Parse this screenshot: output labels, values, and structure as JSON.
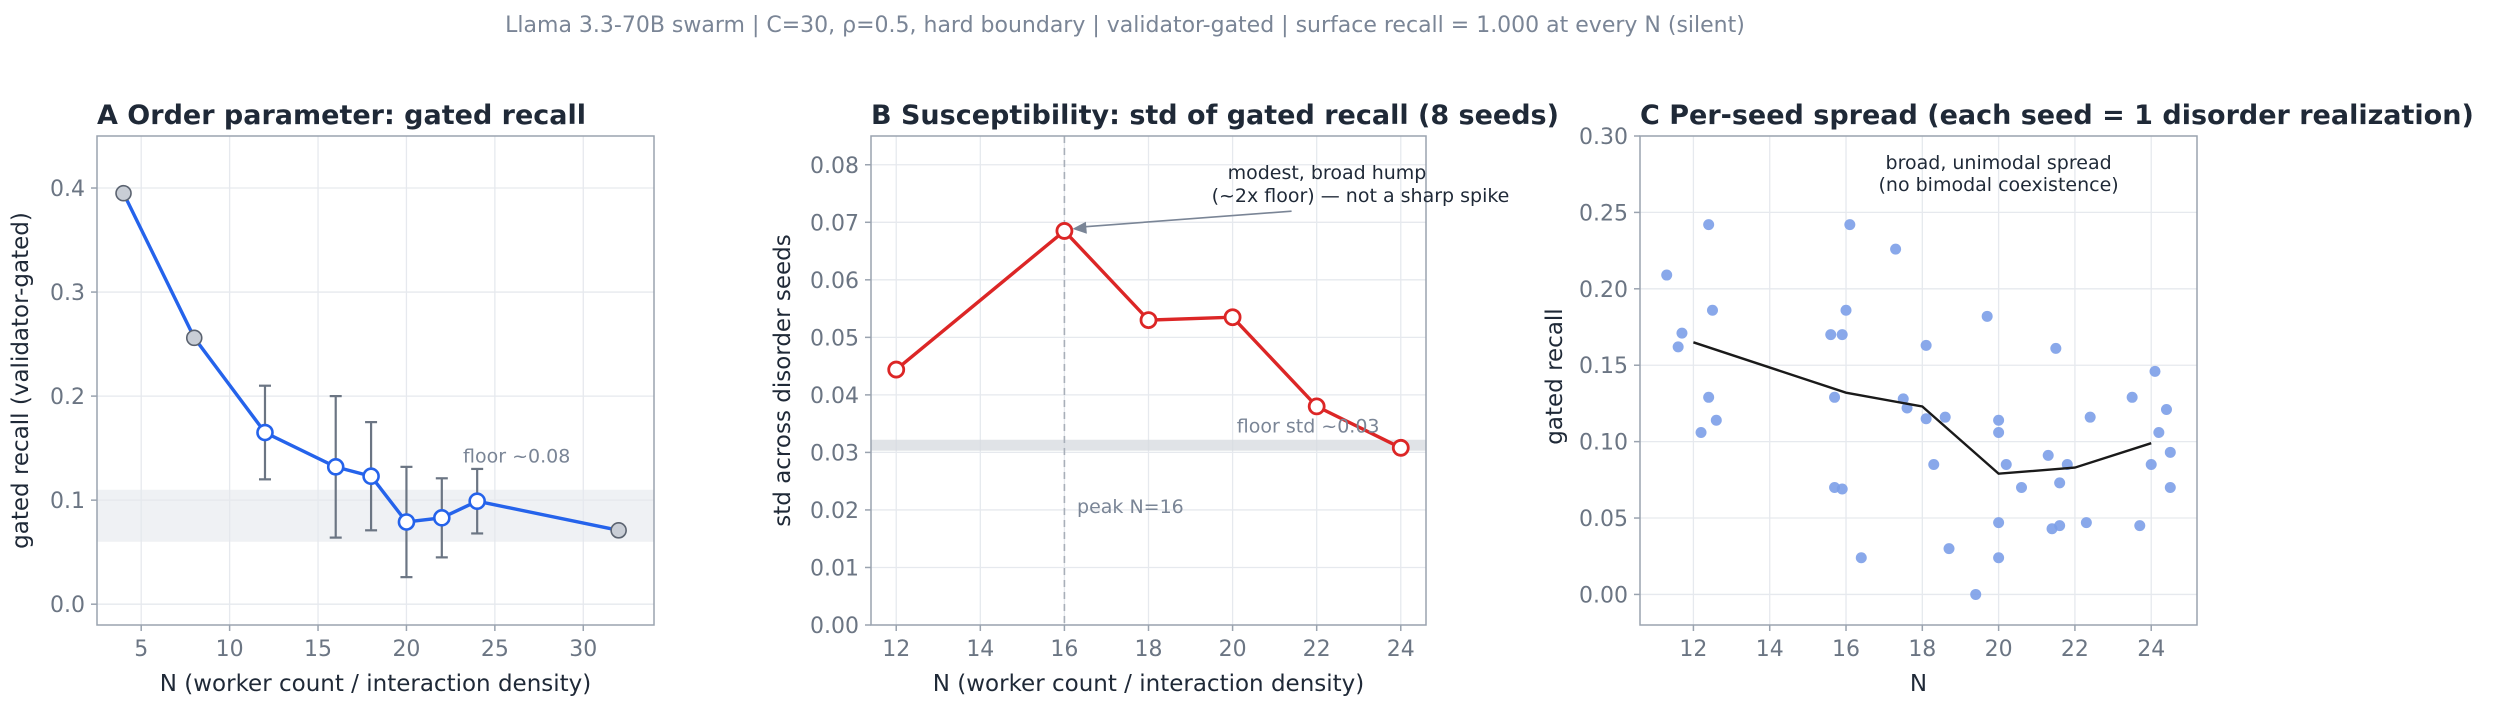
{
  "suptitle": "Llama 3.3-70B swarm  |  C=30, ρ=0.5, hard boundary  |  validator-gated  |  surface recall = 1.000 at every N (silent)",
  "colors": {
    "blue": "#2563eb",
    "red": "#dc2626",
    "scatter": "#7c9ee8",
    "band": "#e5e8ec",
    "gray_marker": "#c9ced6",
    "errorbar": "#6b7583",
    "median": "#1a1a1a"
  },
  "chart_data": [
    {
      "type": "line",
      "title": "A  Order parameter: gated recall",
      "xlabel": "N  (worker count / interaction density)",
      "ylabel": "gated recall (validator-gated)",
      "xlim": [
        2.5,
        34
      ],
      "ylim": [
        -0.02,
        0.45
      ],
      "xticks": [
        5,
        10,
        15,
        20,
        25,
        30
      ],
      "yticks": [
        0.0,
        0.1,
        0.2,
        0.3,
        0.4
      ],
      "yticklabels": [
        "0.0",
        "0.1",
        "0.2",
        "0.3",
        "0.4"
      ],
      "grid": true,
      "floor_band": [
        0.06,
        0.11
      ],
      "floor_label": "floor ~0.08",
      "floor_label_pos": [
        23.2,
        0.136
      ],
      "x": [
        4,
        8,
        12,
        16,
        18,
        20,
        22,
        24,
        32
      ],
      "y": [
        0.395,
        0.256,
        0.165,
        0.132,
        0.123,
        0.079,
        0.083,
        0.099,
        0.071
      ],
      "err": [
        0,
        0,
        0.045,
        0.068,
        0.052,
        0.053,
        0.038,
        0.031,
        0
      ],
      "gray_points": [
        4,
        8,
        32
      ]
    },
    {
      "type": "line",
      "title": "B  Susceptibility: std of gated recall (8 seeds)",
      "xlabel": "N  (worker count / interaction density)",
      "ylabel": "std across disorder seeds",
      "xlim": [
        11.4,
        24.6
      ],
      "ylim": [
        0,
        0.085
      ],
      "xticks": [
        12,
        14,
        16,
        18,
        20,
        22,
        24
      ],
      "yticks": [
        0.0,
        0.01,
        0.02,
        0.03,
        0.04,
        0.05,
        0.06,
        0.07,
        0.08
      ],
      "yticklabels": [
        "0.00",
        "0.01",
        "0.02",
        "0.03",
        "0.04",
        "0.05",
        "0.06",
        "0.07",
        "0.08"
      ],
      "grid": true,
      "floor_band": [
        0.0303,
        0.0322
      ],
      "floor_label": "floor std ~0.03",
      "floor_label_pos": [
        20.1,
        0.0335
      ],
      "peak_x": 16,
      "peak_label": "peak N=16",
      "peak_label_pos": [
        16.3,
        0.0195
      ],
      "annotation_lines": [
        "modest, broad hump",
        "(~2x floor) — not a sharp spike"
      ],
      "annotation_pos": [
        19.5,
        0.0775
      ],
      "x": [
        12,
        16,
        18,
        20,
        22,
        24
      ],
      "y": [
        0.0444,
        0.0685,
        0.053,
        0.0535,
        0.038,
        0.0308
      ]
    },
    {
      "type": "scatter",
      "title": "C  Per-seed spread (each seed = 1 disorder realization)",
      "xlabel": "N",
      "ylabel": "gated recall",
      "xlim": [
        10.6,
        25.2
      ],
      "ylim": [
        -0.02,
        0.3
      ],
      "xticks": [
        12,
        14,
        16,
        18,
        20,
        22,
        24
      ],
      "yticks": [
        0.0,
        0.05,
        0.1,
        0.15,
        0.2,
        0.25,
        0.3
      ],
      "yticklabels": [
        "0.00",
        "0.05",
        "0.10",
        "0.15",
        "0.20",
        "0.25",
        "0.30"
      ],
      "grid": true,
      "annotation_lines": [
        "broad, unimodal spread",
        "(no bimodal coexistence)"
      ],
      "annotation_pos": [
        20.0,
        0.291
      ],
      "points": [
        [
          11.3,
          0.209
        ],
        [
          11.6,
          0.162
        ],
        [
          11.7,
          0.171
        ],
        [
          12.2,
          0.106
        ],
        [
          12.4,
          0.129
        ],
        [
          12.4,
          0.242
        ],
        [
          12.5,
          0.186
        ],
        [
          12.6,
          0.114
        ],
        [
          15.6,
          0.17
        ],
        [
          15.7,
          0.129
        ],
        [
          15.7,
          0.07
        ],
        [
          15.9,
          0.069
        ],
        [
          15.9,
          0.17
        ],
        [
          16.0,
          0.186
        ],
        [
          16.1,
          0.242
        ],
        [
          16.4,
          0.024
        ],
        [
          17.3,
          0.226
        ],
        [
          17.5,
          0.128
        ],
        [
          17.6,
          0.122
        ],
        [
          18.1,
          0.163
        ],
        [
          18.1,
          0.115
        ],
        [
          18.3,
          0.085
        ],
        [
          18.6,
          0.116
        ],
        [
          18.7,
          0.03
        ],
        [
          19.4,
          0.0
        ],
        [
          19.7,
          0.182
        ],
        [
          20.0,
          0.114
        ],
        [
          20.0,
          0.106
        ],
        [
          20.0,
          0.047
        ],
        [
          20.0,
          0.024
        ],
        [
          20.2,
          0.085
        ],
        [
          20.6,
          0.07
        ],
        [
          21.3,
          0.091
        ],
        [
          21.4,
          0.043
        ],
        [
          21.5,
          0.161
        ],
        [
          21.6,
          0.045
        ],
        [
          21.6,
          0.073
        ],
        [
          21.8,
          0.085
        ],
        [
          22.3,
          0.047
        ],
        [
          22.4,
          0.116
        ],
        [
          23.5,
          0.129
        ],
        [
          23.7,
          0.045
        ],
        [
          24.0,
          0.085
        ],
        [
          24.1,
          0.146
        ],
        [
          24.2,
          0.106
        ],
        [
          24.4,
          0.121
        ],
        [
          24.5,
          0.093
        ],
        [
          24.5,
          0.07
        ]
      ],
      "median_line": {
        "x": [
          12,
          16,
          18,
          20,
          22,
          24
        ],
        "y": [
          0.165,
          0.132,
          0.123,
          0.079,
          0.083,
          0.099
        ]
      }
    }
  ]
}
